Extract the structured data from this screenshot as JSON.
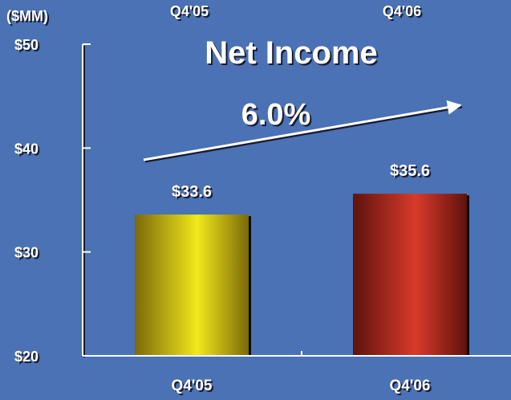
{
  "colors": {
    "background": "#4a72b4",
    "text": "#ffffff",
    "shadow": "#1a1a2e",
    "bar_q4_05_center": "#f2e81a",
    "bar_q4_05_edge": "#7a6a0a",
    "bar_q4_06_center": "#d93a2a",
    "bar_q4_06_edge": "#5e120d"
  },
  "chart_data": {
    "type": "bar",
    "title": "Net Income",
    "unit_label": "($MM)",
    "top_labels": [
      "Q4'05",
      "Q4'06"
    ],
    "categories": [
      "Q4'05",
      "Q4'06"
    ],
    "values": [
      33.6,
      35.6
    ],
    "data_labels": [
      "$33.6",
      "$35.6"
    ],
    "ylim": [
      20,
      50
    ],
    "yticks": [
      20,
      30,
      40,
      50
    ],
    "ytick_labels": [
      "$20",
      "$30",
      "$40",
      "$50"
    ],
    "growth_annotation": "6.0%",
    "grid": false
  }
}
